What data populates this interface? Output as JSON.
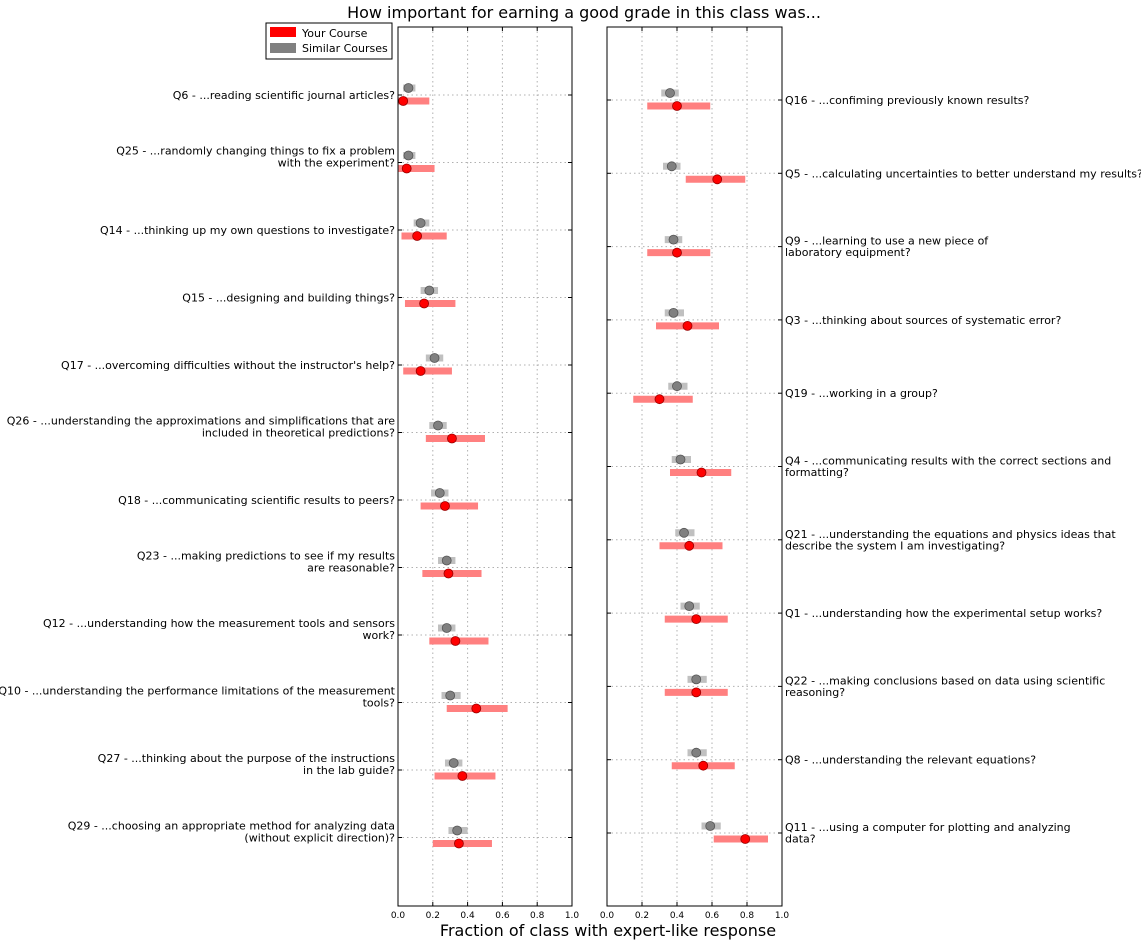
{
  "chart_data": {
    "type": "dot-interval",
    "title": "How important for earning a good grade in this class was...",
    "xlabel": "Fraction of class with expert-like response",
    "xlim": [
      0,
      1
    ],
    "xticks": [
      "0.0",
      "0.2",
      "0.4",
      "0.6",
      "0.8",
      "1.0"
    ],
    "grid": true,
    "legend": {
      "placement": "top-right of left panel",
      "entries": [
        {
          "label": "Your Course",
          "color": "#ff0000"
        },
        {
          "label": "Similar Courses",
          "color": "#808080"
        }
      ]
    },
    "colors": {
      "your_dot": "#ff0000",
      "your_bar": "#ff8080",
      "similar_dot": "#808080",
      "similar_bar": "#c0c0c0"
    },
    "panels": [
      {
        "label_side": "left",
        "items": [
          {
            "lines": [
              "Q6 - ...reading scientific journal articles?"
            ],
            "your": 0.03,
            "your_ci": [
              0.0,
              0.18
            ],
            "similar": 0.06,
            "similar_ci": [
              0.03,
              0.1
            ]
          },
          {
            "lines": [
              "Q25 - ...randomly changing things to fix a problem",
              "with the experiment?"
            ],
            "your": 0.05,
            "your_ci": [
              0.0,
              0.21
            ],
            "similar": 0.06,
            "similar_ci": [
              0.03,
              0.1
            ]
          },
          {
            "lines": [
              "Q14 - ...thinking up my own questions to investigate?"
            ],
            "your": 0.11,
            "your_ci": [
              0.02,
              0.28
            ],
            "similar": 0.13,
            "similar_ci": [
              0.09,
              0.18
            ]
          },
          {
            "lines": [
              "Q15 - ...designing and building things?"
            ],
            "your": 0.15,
            "your_ci": [
              0.04,
              0.33
            ],
            "similar": 0.18,
            "similar_ci": [
              0.13,
              0.23
            ]
          },
          {
            "lines": [
              "Q17 - ...overcoming difficulties without the instructor's help?"
            ],
            "your": 0.13,
            "your_ci": [
              0.03,
              0.31
            ],
            "similar": 0.21,
            "similar_ci": [
              0.16,
              0.26
            ]
          },
          {
            "lines": [
              "Q26 - ...understanding the approximations and simplifications that are",
              "included in theoretical predictions?"
            ],
            "your": 0.31,
            "your_ci": [
              0.16,
              0.5
            ],
            "similar": 0.23,
            "similar_ci": [
              0.18,
              0.28
            ]
          },
          {
            "lines": [
              "Q18 - ...communicating scientific results to peers?"
            ],
            "your": 0.27,
            "your_ci": [
              0.13,
              0.46
            ],
            "similar": 0.24,
            "similar_ci": [
              0.19,
              0.29
            ]
          },
          {
            "lines": [
              "Q23 - ...making predictions to see if my results",
              "are reasonable?"
            ],
            "your": 0.29,
            "your_ci": [
              0.14,
              0.48
            ],
            "similar": 0.28,
            "similar_ci": [
              0.23,
              0.33
            ]
          },
          {
            "lines": [
              "Q12 - ...understanding how the measurement tools and sensors",
              "work?"
            ],
            "your": 0.33,
            "your_ci": [
              0.18,
              0.52
            ],
            "similar": 0.28,
            "similar_ci": [
              0.23,
              0.33
            ]
          },
          {
            "lines": [
              "Q10 - ...understanding the performance limitations of the measurement",
              "tools?"
            ],
            "your": 0.45,
            "your_ci": [
              0.28,
              0.63
            ],
            "similar": 0.3,
            "similar_ci": [
              0.25,
              0.36
            ]
          },
          {
            "lines": [
              "Q27 - ...thinking about the purpose of the instructions",
              "in the lab guide?"
            ],
            "your": 0.37,
            "your_ci": [
              0.21,
              0.56
            ],
            "similar": 0.32,
            "similar_ci": [
              0.27,
              0.37
            ]
          },
          {
            "lines": [
              "Q29 - ...choosing an appropriate method for analyzing data",
              "(without explicit direction)?"
            ],
            "your": 0.35,
            "your_ci": [
              0.2,
              0.54
            ],
            "similar": 0.34,
            "similar_ci": [
              0.29,
              0.4
            ]
          }
        ]
      },
      {
        "label_side": "right",
        "items": [
          {
            "lines": [
              "Q16 - ...confiming previously known results?"
            ],
            "your": 0.4,
            "your_ci": [
              0.23,
              0.59
            ],
            "similar": 0.36,
            "similar_ci": [
              0.31,
              0.41
            ]
          },
          {
            "lines": [
              "Q5 - ...calculating uncertainties to better understand my results?"
            ],
            "your": 0.63,
            "your_ci": [
              0.45,
              0.79
            ],
            "similar": 0.37,
            "similar_ci": [
              0.32,
              0.42
            ]
          },
          {
            "lines": [
              "Q9 - ...learning to use a new piece of",
              "laboratory equipment?"
            ],
            "your": 0.4,
            "your_ci": [
              0.23,
              0.59
            ],
            "similar": 0.38,
            "similar_ci": [
              0.33,
              0.43
            ]
          },
          {
            "lines": [
              "Q3 - ...thinking about sources of systematic error?"
            ],
            "your": 0.46,
            "your_ci": [
              0.28,
              0.64
            ],
            "similar": 0.38,
            "similar_ci": [
              0.33,
              0.44
            ]
          },
          {
            "lines": [
              "Q19 - ...working in a group?"
            ],
            "your": 0.3,
            "your_ci": [
              0.15,
              0.49
            ],
            "similar": 0.4,
            "similar_ci": [
              0.35,
              0.46
            ]
          },
          {
            "lines": [
              "Q4 - ...communicating results with the correct sections and",
              "formatting?"
            ],
            "your": 0.54,
            "your_ci": [
              0.36,
              0.71
            ],
            "similar": 0.42,
            "similar_ci": [
              0.37,
              0.48
            ]
          },
          {
            "lines": [
              "Q21 - ...understanding the equations and physics ideas that",
              "describe the system I am investigating?"
            ],
            "your": 0.47,
            "your_ci": [
              0.3,
              0.66
            ],
            "similar": 0.44,
            "similar_ci": [
              0.39,
              0.5
            ]
          },
          {
            "lines": [
              "Q1 - ...understanding how the experimental setup works?"
            ],
            "your": 0.51,
            "your_ci": [
              0.33,
              0.69
            ],
            "similar": 0.47,
            "similar_ci": [
              0.42,
              0.53
            ]
          },
          {
            "lines": [
              "Q22 - ...making conclusions based on data using scientific",
              "reasoning?"
            ],
            "your": 0.51,
            "your_ci": [
              0.33,
              0.69
            ],
            "similar": 0.51,
            "similar_ci": [
              0.46,
              0.57
            ]
          },
          {
            "lines": [
              "Q8 - ...understanding the relevant equations?"
            ],
            "your": 0.55,
            "your_ci": [
              0.37,
              0.73
            ],
            "similar": 0.51,
            "similar_ci": [
              0.46,
              0.57
            ]
          },
          {
            "lines": [
              "Q11 - ...using a computer for plotting and analyzing",
              "data?"
            ],
            "your": 0.79,
            "your_ci": [
              0.61,
              0.92
            ],
            "similar": 0.59,
            "similar_ci": [
              0.54,
              0.65
            ]
          }
        ]
      }
    ]
  }
}
